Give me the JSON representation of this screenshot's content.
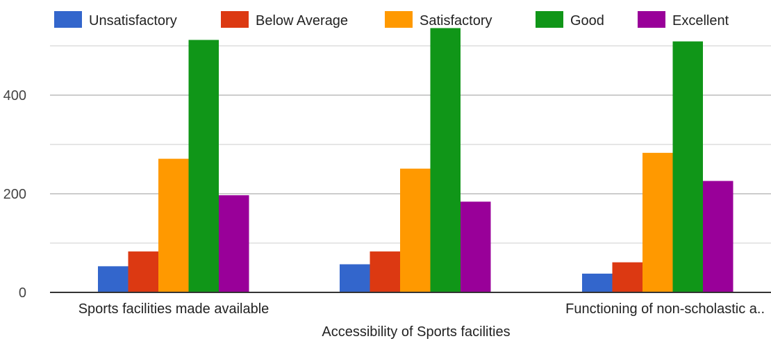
{
  "chart_data": {
    "type": "bar",
    "categories": [
      "Sports facilities made available",
      "Accessibility of Sports facilities",
      "Functioning of non-scholastic a.."
    ],
    "series": [
      {
        "name": "Unsatisfactory",
        "color": "#3366cc",
        "values": [
          53,
          57,
          38
        ]
      },
      {
        "name": "Below Average",
        "color": "#dc3912",
        "values": [
          83,
          83,
          61
        ]
      },
      {
        "name": "Satisfactory",
        "color": "#ff9900",
        "values": [
          271,
          251,
          283
        ]
      },
      {
        "name": "Good",
        "color": "#109618",
        "values": [
          512,
          536,
          509
        ]
      },
      {
        "name": "Excellent",
        "color": "#990099",
        "values": [
          197,
          184,
          226
        ]
      }
    ],
    "y_ticks": [
      0,
      200,
      400
    ],
    "ylim": [
      0,
      500
    ],
    "grid": true,
    "legend_position": "top"
  }
}
